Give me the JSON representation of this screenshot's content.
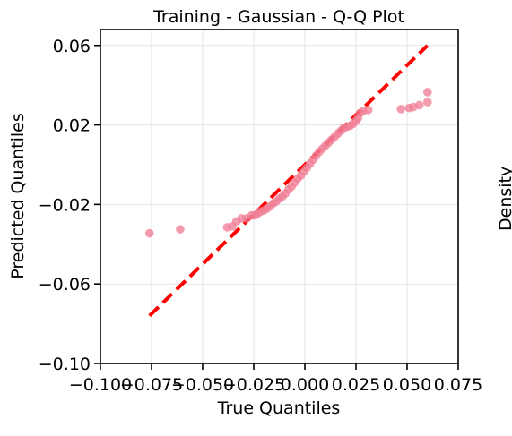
{
  "chart_data": {
    "type": "scatter",
    "title": "Training - Gaussian - Q-Q Plot",
    "xlabel": "True Quantiles",
    "ylabel": "Predicted Quantiles",
    "xlim": [
      -0.1,
      0.075
    ],
    "ylim": [
      -0.1,
      0.068
    ],
    "grid": true,
    "x_ticks": [
      -0.1,
      -0.075,
      -0.05,
      -0.025,
      0.0,
      0.025,
      0.05,
      0.075
    ],
    "x_tick_labels": [
      "−0.100",
      "−0.075",
      "−0.050",
      "−0.025",
      "0.000",
      "0.025",
      "0.050",
      "0.075"
    ],
    "y_ticks": [
      -0.1,
      -0.06,
      -0.02,
      0.02,
      0.06
    ],
    "y_tick_labels": [
      "−0.10",
      "−0.06",
      "−0.02",
      "0.02",
      "0.06"
    ],
    "colors": {
      "points": "#f07b93",
      "reference_line": "#ff0000",
      "grid": "#e3e3e3"
    },
    "reference_line": {
      "x": [
        -0.076,
        0.06
      ],
      "y": [
        -0.076,
        0.06
      ],
      "style": "dashed"
    },
    "series": [
      {
        "values": [
          [
            -0.076,
            -0.0345
          ],
          [
            -0.061,
            -0.0325
          ],
          [
            -0.038,
            -0.0315
          ],
          [
            -0.0355,
            -0.031
          ],
          [
            -0.0335,
            -0.0285
          ],
          [
            -0.031,
            -0.027
          ],
          [
            -0.0285,
            -0.027
          ],
          [
            -0.026,
            -0.0255
          ],
          [
            -0.0245,
            -0.0255
          ],
          [
            -0.023,
            -0.0245
          ],
          [
            -0.0215,
            -0.0235
          ],
          [
            -0.02,
            -0.023
          ],
          [
            -0.0185,
            -0.022
          ],
          [
            -0.017,
            -0.021
          ],
          [
            -0.0155,
            -0.0195
          ],
          [
            -0.014,
            -0.0185
          ],
          [
            -0.0125,
            -0.017
          ],
          [
            -0.011,
            -0.016
          ],
          [
            -0.0095,
            -0.0145
          ],
          [
            -0.008,
            -0.0125
          ],
          [
            -0.0065,
            -0.011
          ],
          [
            -0.005,
            -0.009
          ],
          [
            -0.0035,
            -0.007
          ],
          [
            -0.002,
            -0.0055
          ],
          [
            -0.0005,
            -0.0035
          ],
          [
            0.001,
            -0.0015
          ],
          [
            0.0025,
            0.0005
          ],
          [
            0.004,
            0.0025
          ],
          [
            0.0055,
            0.0045
          ],
          [
            0.007,
            0.0065
          ],
          [
            0.0085,
            0.008
          ],
          [
            0.01,
            0.0095
          ],
          [
            0.0115,
            0.011
          ],
          [
            0.013,
            0.0125
          ],
          [
            0.0145,
            0.014
          ],
          [
            0.016,
            0.0155
          ],
          [
            0.0175,
            0.017
          ],
          [
            0.019,
            0.0185
          ],
          [
            0.0205,
            0.019
          ],
          [
            0.022,
            0.0195
          ],
          [
            0.0235,
            0.0205
          ],
          [
            0.025,
            0.022
          ],
          [
            0.026,
            0.0235
          ],
          [
            0.027,
            0.026
          ],
          [
            0.0285,
            0.027
          ],
          [
            0.031,
            0.0275
          ],
          [
            0.047,
            0.028
          ],
          [
            0.051,
            0.0285
          ],
          [
            0.053,
            0.029
          ],
          [
            0.056,
            0.03
          ],
          [
            0.06,
            0.0315
          ],
          [
            0.06,
            0.0365
          ]
        ]
      }
    ]
  },
  "cropped_neighbor": {
    "label": "Density"
  }
}
